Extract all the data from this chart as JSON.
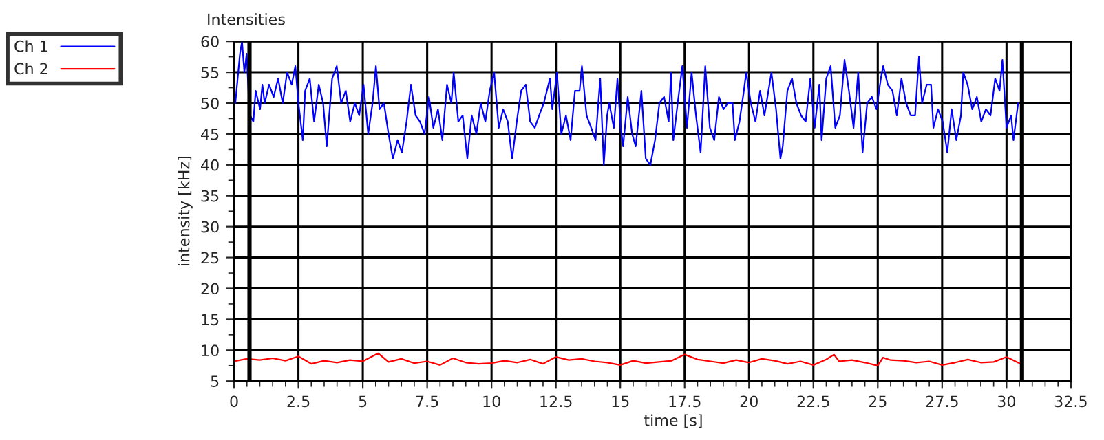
{
  "chart_data": {
    "type": "line",
    "title": "Intensities",
    "xlabel": "time [s]",
    "ylabel": "intensity [kHz]",
    "xlim": [
      0,
      32.5
    ],
    "xticks": [
      0,
      2.5,
      5,
      7.5,
      10,
      12.5,
      15,
      17.5,
      20,
      22.5,
      25,
      27.5,
      30,
      32.5
    ],
    "ylim": [
      5,
      60
    ],
    "yticks": [
      5,
      10,
      15,
      20,
      25,
      30,
      35,
      40,
      45,
      50,
      55,
      60
    ],
    "grid": true,
    "legend": "top left",
    "ref_lines": [
      {
        "axis": "x",
        "value": 0.6,
        "color": "#000000"
      },
      {
        "axis": "x",
        "value": 30.6,
        "color": "#000000"
      }
    ],
    "series": [
      {
        "name": "Ch 1",
        "color": "#0000ff",
        "x": [
          0,
          0.05,
          0.23,
          0.31,
          0.4,
          0.49,
          0.58,
          0.63,
          0.75,
          0.84,
          1.01,
          1.1,
          1.19,
          1.36,
          1.54,
          1.71,
          1.89,
          2.06,
          2.24,
          2.38,
          2.5,
          2.67,
          2.76,
          2.94,
          3.11,
          3.29,
          3.46,
          3.6,
          3.81,
          3.99,
          4.16,
          4.34,
          4.51,
          4.69,
          4.86,
          5.03,
          5.21,
          5.38,
          5.51,
          5.65,
          5.82,
          6.0,
          6.17,
          6.35,
          6.52,
          6.7,
          6.87,
          7.05,
          7.22,
          7.4,
          7.57,
          7.74,
          7.92,
          8.09,
          8.27,
          8.44,
          8.53,
          8.71,
          8.88,
          9.06,
          9.23,
          9.41,
          9.58,
          9.76,
          9.93,
          10.1,
          10.28,
          10.45,
          10.63,
          10.8,
          10.98,
          11.15,
          11.33,
          11.5,
          11.68,
          11.85,
          12.03,
          12.27,
          12.36,
          12.54,
          12.71,
          12.89,
          13.07,
          13.24,
          13.42,
          13.51,
          13.69,
          13.87,
          14.04,
          14.22,
          14.36,
          14.49,
          14.57,
          14.75,
          14.89,
          15.02,
          15.11,
          15.29,
          15.46,
          15.6,
          15.82,
          15.99,
          16.17,
          16.35,
          16.52,
          16.7,
          16.88,
          16.97,
          17.06,
          17.23,
          17.41,
          17.59,
          17.77,
          17.94,
          18.12,
          18.3,
          18.48,
          18.65,
          18.83,
          19.01,
          19.18,
          19.36,
          19.45,
          19.63,
          19.8,
          19.89,
          20.07,
          20.25,
          20.43,
          20.6,
          20.87,
          21.05,
          21.22,
          21.31,
          21.49,
          21.67,
          21.84,
          22.02,
          22.2,
          22.38,
          22.55,
          22.73,
          22.82,
          23.0,
          23.17,
          23.35,
          23.53,
          23.71,
          23.88,
          24.06,
          24.24,
          24.41,
          24.59,
          24.77,
          24.95,
          25.12,
          25.21,
          25.39,
          25.57,
          25.74,
          25.92,
          26.1,
          26.28,
          26.45,
          26.6,
          26.72,
          26.9,
          27.07,
          27.16,
          27.34,
          27.52,
          27.7,
          27.87,
          28.05,
          28.23,
          28.32,
          28.49,
          28.67,
          28.85,
          29.02,
          29.2,
          29.38,
          29.56,
          29.73,
          29.84,
          30.0,
          30.18,
          30.27,
          30.45
        ],
        "values": [
          51,
          50,
          58,
          60,
          55,
          58,
          50,
          48,
          47,
          52,
          49,
          53,
          50,
          53,
          51,
          54,
          50,
          55,
          53,
          56,
          50,
          44,
          52,
          54,
          47,
          53,
          50,
          43,
          54,
          56,
          50,
          52,
          47,
          50,
          48,
          53,
          45,
          50,
          56,
          49,
          50,
          45,
          41,
          44,
          42,
          47,
          53,
          48,
          47,
          45,
          51,
          46,
          49,
          44,
          53,
          50,
          55,
          47,
          48,
          41,
          48,
          45,
          50,
          47,
          52,
          55,
          46,
          49,
          47,
          41,
          47,
          52,
          53,
          47,
          46,
          48,
          50,
          54,
          49,
          55,
          45,
          48,
          44,
          52,
          52,
          56,
          48,
          46,
          44,
          54,
          40,
          48,
          50,
          46,
          54,
          46,
          43,
          51,
          45,
          43,
          52,
          41,
          40,
          44,
          50,
          51,
          47,
          55,
          44,
          50,
          56,
          46,
          55,
          48,
          42,
          56,
          46,
          44,
          51,
          49,
          50,
          50,
          44,
          47,
          52,
          55,
          50,
          47,
          52,
          48,
          55,
          49,
          41,
          43,
          52,
          54,
          50,
          48,
          47,
          54,
          46,
          53,
          44,
          54,
          56,
          46,
          48,
          57,
          52,
          46,
          55,
          42,
          50,
          51,
          49,
          54,
          56,
          53,
          52,
          48,
          54,
          50,
          48,
          48,
          57.5,
          50,
          53,
          53,
          46,
          49,
          47,
          42,
          49,
          44,
          48,
          55,
          53,
          49,
          51,
          47,
          49,
          48,
          54,
          52,
          57,
          46,
          48,
          44,
          50
        ]
      },
      {
        "name": "Ch 2",
        "color": "#ff0000",
        "x": [
          0,
          0.5,
          1,
          1.5,
          2,
          2.5,
          3,
          3.5,
          4,
          4.5,
          5,
          5.6,
          6,
          6.5,
          7,
          7.5,
          8,
          8.5,
          9,
          9.5,
          10,
          10.5,
          11,
          11.5,
          12,
          12.5,
          13,
          13.5,
          14,
          14.5,
          15,
          15.5,
          16,
          16.5,
          17,
          17.5,
          18,
          18.5,
          19,
          19.5,
          20,
          20.5,
          21,
          21.5,
          22,
          22.5,
          23,
          23.3,
          23.5,
          24,
          24.5,
          25,
          25.2,
          25.5,
          26,
          26.5,
          27,
          27.5,
          28,
          28.5,
          29,
          29.5,
          30,
          30.5
        ],
        "values": [
          8.2,
          8.6,
          8.4,
          8.7,
          8.3,
          9.0,
          7.8,
          8.3,
          8.0,
          8.4,
          8.2,
          9.5,
          8.1,
          8.6,
          7.9,
          8.2,
          7.6,
          8.7,
          8.0,
          7.8,
          7.9,
          8.3,
          8.0,
          8.5,
          7.8,
          8.9,
          8.4,
          8.6,
          8.2,
          8.0,
          7.6,
          8.3,
          7.9,
          8.1,
          8.3,
          9.3,
          8.5,
          8.2,
          7.9,
          8.4,
          8.0,
          8.6,
          8.3,
          7.8,
          8.2,
          7.6,
          8.5,
          9.3,
          8.2,
          8.4,
          8.0,
          7.5,
          8.8,
          8.4,
          8.3,
          8.0,
          8.2,
          7.6,
          8.0,
          8.5,
          8.0,
          8.1,
          8.9,
          7.9
        ]
      }
    ]
  }
}
